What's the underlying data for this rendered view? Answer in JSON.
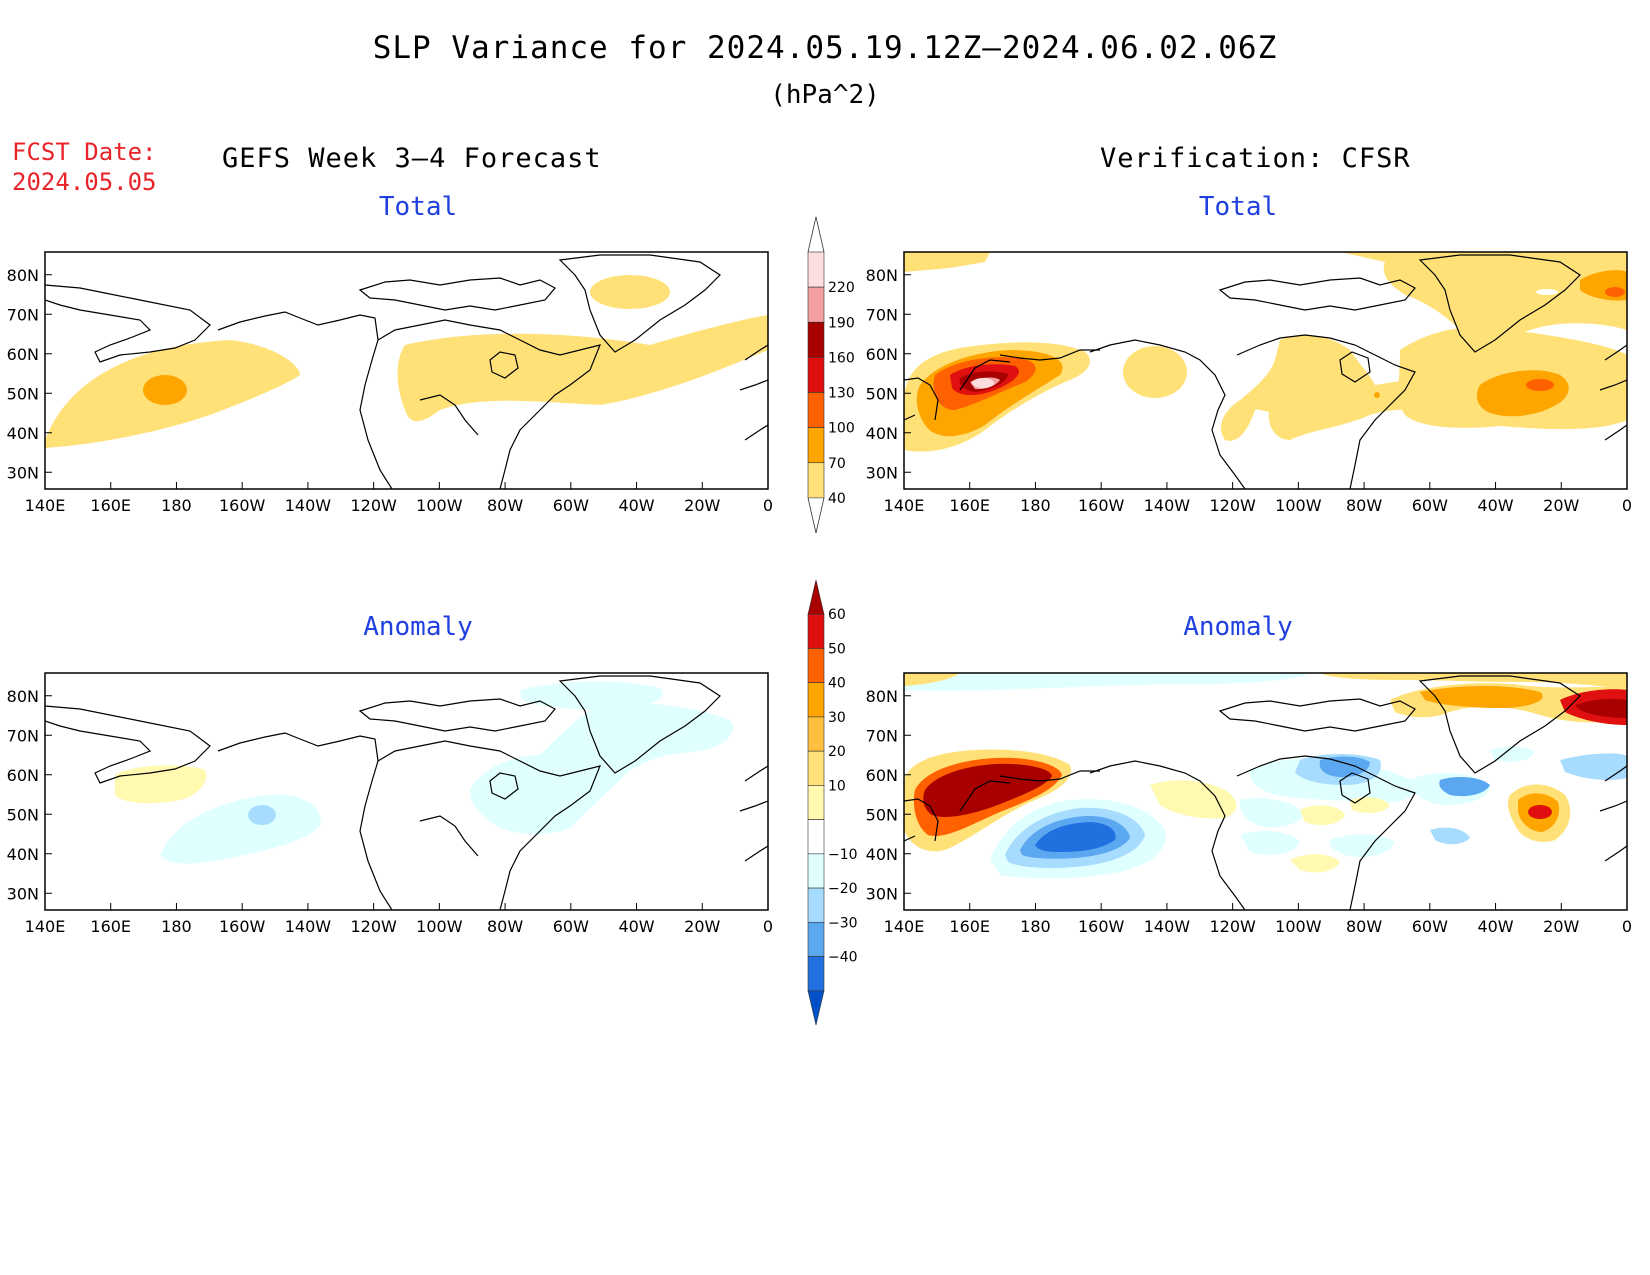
{
  "header": {
    "title": "SLP Variance for 2024.05.19.12Z–2024.06.02.06Z",
    "units": "(hPa^2)",
    "fcst_label": "FCST Date:",
    "fcst_date": "2024.05.05",
    "left_heading": "GEFS Week 3–4 Forecast",
    "right_heading": "Verification: CFSR"
  },
  "panels": {
    "tl": {
      "title": "Total"
    },
    "tr": {
      "title": "Total"
    },
    "bl": {
      "title": "Anomaly"
    },
    "br": {
      "title": "Anomaly"
    }
  },
  "axes": {
    "lon_labels": [
      "140E",
      "160E",
      "180",
      "160W",
      "140W",
      "120W",
      "100W",
      "80W",
      "60W",
      "40W",
      "20W",
      "0"
    ],
    "lat_labels": [
      "80N",
      "70N",
      "60N",
      "50N",
      "40N",
      "30N"
    ]
  },
  "colorbars": {
    "total": {
      "labels": [
        "220",
        "190",
        "160",
        "130",
        "100",
        "70",
        "40"
      ],
      "colors": [
        "#fcdede",
        "#f2a0a0",
        "#a80000",
        "#e01010",
        "#ff6000",
        "#ffa500",
        "#ffe178"
      ]
    },
    "anomaly": {
      "labels": [
        "60",
        "50",
        "40",
        "30",
        "20",
        "10",
        "−10",
        "−20",
        "−30",
        "−40"
      ],
      "colors": [
        "#a80000",
        "#e01010",
        "#ff6000",
        "#ffa500",
        "#ffc040",
        "#ffe178",
        "#fffab0",
        "#ffffff",
        "#e0ffff",
        "#a8dcff",
        "#5ca8f0",
        "#2070e0",
        "#0050c8"
      ]
    }
  }
}
